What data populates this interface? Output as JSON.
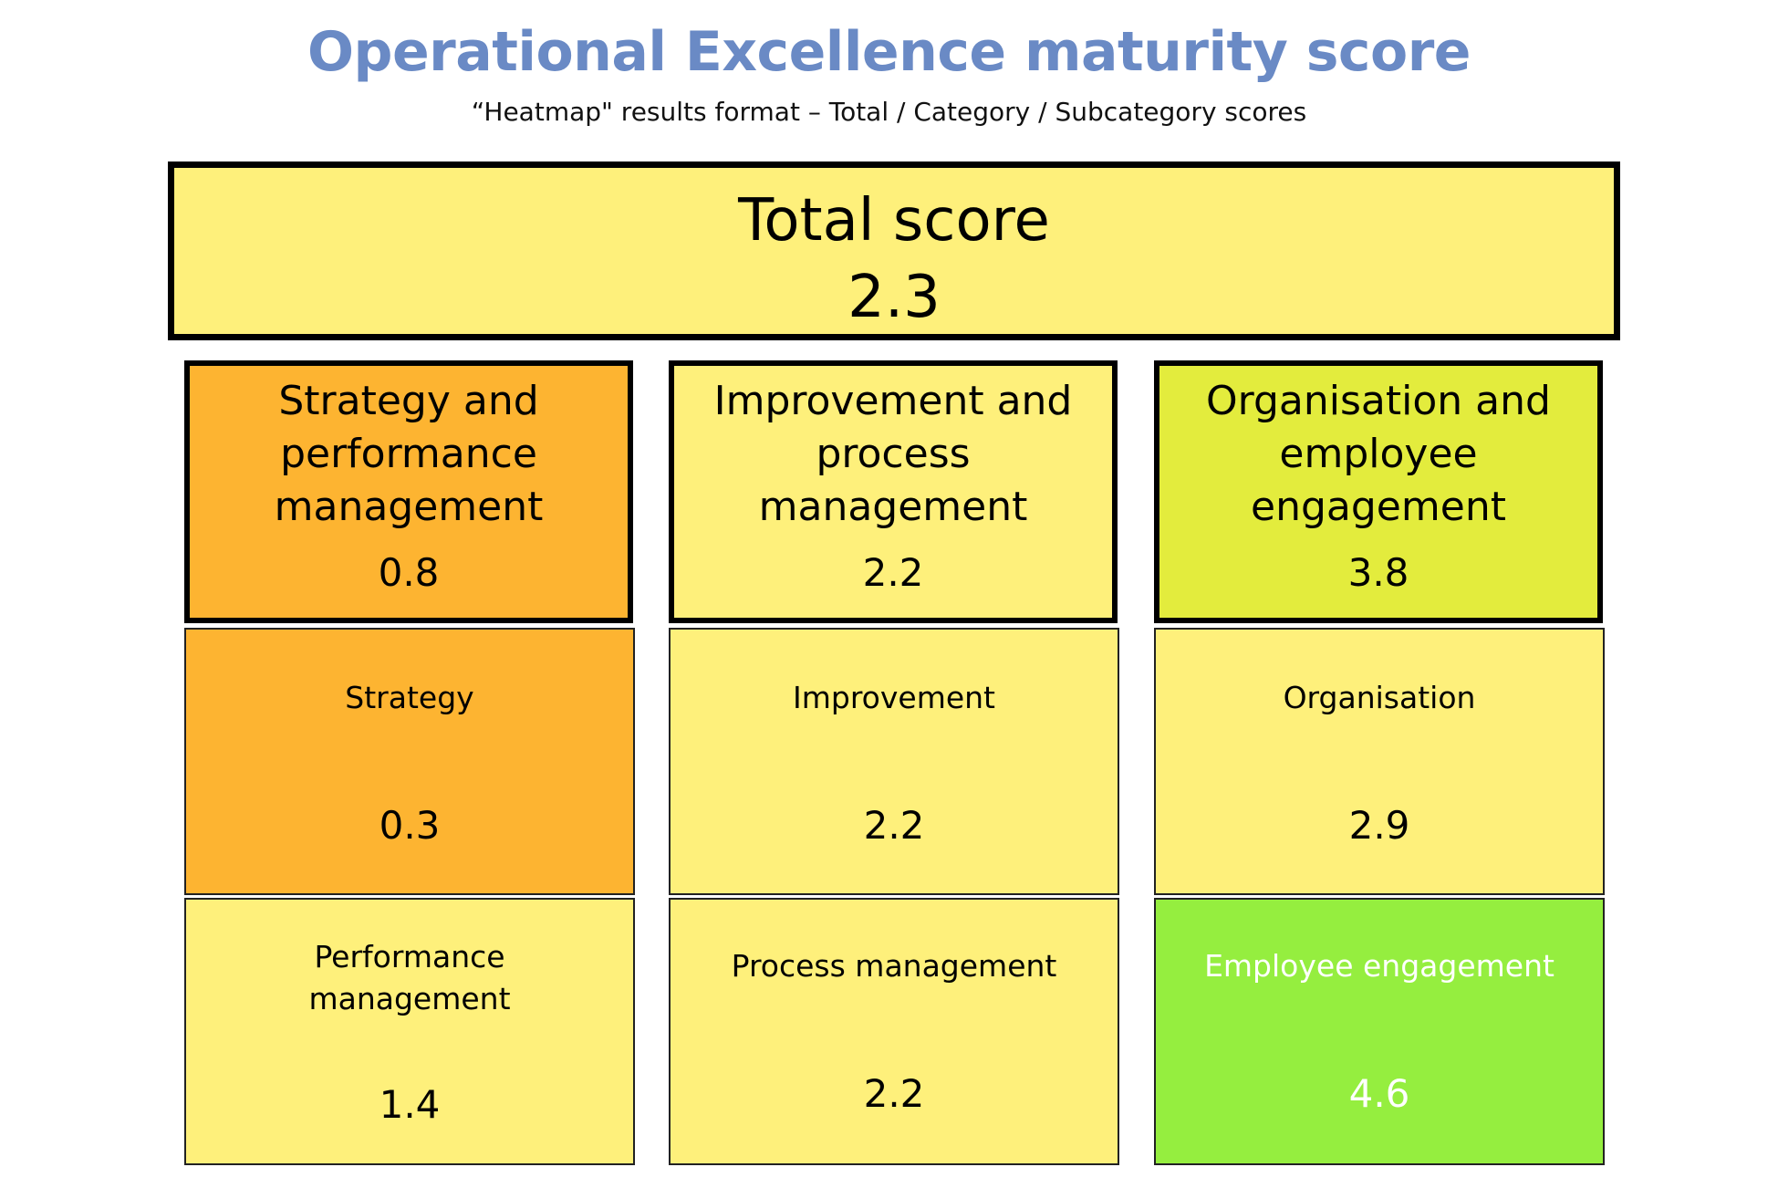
{
  "header": {
    "title": "Operational Excellence maturity score",
    "subtitle": "“Heatmap\" results format – Total / Category / Subcategory scores"
  },
  "colors": {
    "title": "#6a8ac5",
    "score_0_1": "#fdb431",
    "score_1_3": "#fef07b",
    "score_3_4": "#e3ec3d",
    "score_4_5": "#95ee3f"
  },
  "total": {
    "label": "Total score",
    "value": "2.3"
  },
  "categories": [
    {
      "label": "Strategy and performance management",
      "value": "0.8",
      "color": "#fdb431",
      "subcategories": [
        {
          "label": "Strategy",
          "value": "0.3",
          "color": "#fdb431"
        },
        {
          "label": "Performance management",
          "value": "1.4",
          "color": "#fef07b"
        }
      ]
    },
    {
      "label": "Improvement and process management",
      "value": "2.2",
      "color": "#fef07b",
      "subcategories": [
        {
          "label": "Improvement",
          "value": "2.2",
          "color": "#fef07b"
        },
        {
          "label": "Process management",
          "value": "2.2",
          "color": "#fef07b"
        }
      ]
    },
    {
      "label": "Organisation and employee engagement",
      "value": "3.8",
      "color": "#e3ec3d",
      "subcategories": [
        {
          "label": "Organisation",
          "value": "2.9",
          "color": "#fef07b"
        },
        {
          "label": "Employee engagement",
          "value": "4.6",
          "color": "#95ee3f"
        }
      ]
    }
  ]
}
